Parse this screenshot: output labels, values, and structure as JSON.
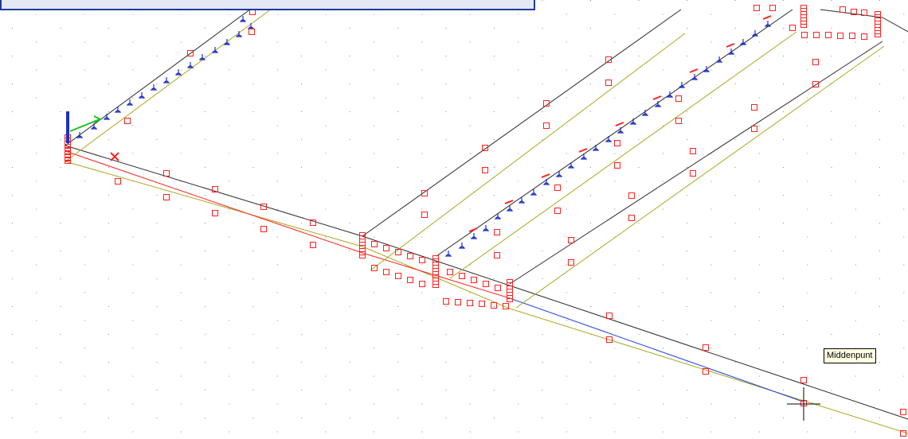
{
  "tooltip": {
    "text": "Middenpunt"
  },
  "colors": {
    "background": "#ffffff",
    "grid_dot": "#8a8a8a",
    "line_black": "#2a2a2a",
    "line_olive": "#a8a820",
    "line_red": "#ff2020",
    "line_blue": "#2040e0",
    "grip": "#ff2020",
    "sprinkler": "#1e2ec8",
    "ucs_y": "#1e2ec8",
    "ucs_x": "#20c020",
    "frame_border": "#1e3a9a"
  },
  "icons": {
    "cursor": "crosshair-cursor-icon",
    "ucs": "ucs-icon",
    "grip": "grip-square-icon",
    "sprinkler": "sprinkler-head-icon"
  }
}
